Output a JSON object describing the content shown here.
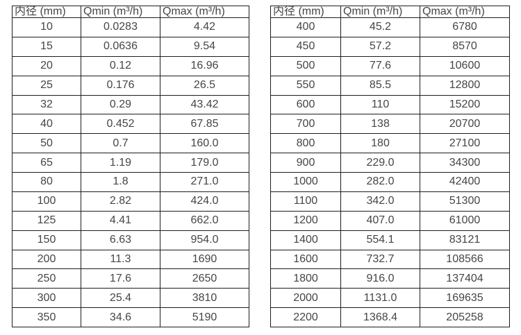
{
  "colors": {
    "border": "#1c1c1c",
    "text": "#454545",
    "background": "#ffffff"
  },
  "tables": {
    "left": {
      "headers": [
        "内径 (mm)",
        "Qmin (m³/h)",
        "Qmax (m³/h)"
      ],
      "rows": [
        [
          "10",
          "0.0283",
          "4.42"
        ],
        [
          "15",
          "0.0636",
          "9.54"
        ],
        [
          "20",
          "0.12",
          "16.96"
        ],
        [
          "25",
          "0.176",
          "26.5"
        ],
        [
          "32",
          "0.29",
          "43.42"
        ],
        [
          "40",
          "0.452",
          "67.85"
        ],
        [
          "50",
          "0.7",
          "160.0"
        ],
        [
          "65",
          "1.19",
          "179.0"
        ],
        [
          "80",
          "1.8",
          "271.0"
        ],
        [
          "100",
          "2.82",
          "424.0"
        ],
        [
          "125",
          "4.41",
          "662.0"
        ],
        [
          "150",
          "6.63",
          "954.0"
        ],
        [
          "200",
          "11.3",
          "1690"
        ],
        [
          "250",
          "17.6",
          "2650"
        ],
        [
          "300",
          "25.4",
          "3810"
        ],
        [
          "350",
          "34.6",
          "5190"
        ]
      ]
    },
    "right": {
      "headers": [
        "内径 (mm)",
        "Qmin (m³/h)",
        "Qmax (m³/h)"
      ],
      "rows": [
        [
          "400",
          "45.2",
          "6780"
        ],
        [
          "450",
          "57.2",
          "8570"
        ],
        [
          "500",
          "77.6",
          "10600"
        ],
        [
          "550",
          "85.5",
          "12800"
        ],
        [
          "600",
          "110",
          "15200"
        ],
        [
          "700",
          "138",
          "20700"
        ],
        [
          "800",
          "180",
          "27100"
        ],
        [
          "900",
          "229.0",
          "34300"
        ],
        [
          "1000",
          "282.0",
          "42400"
        ],
        [
          "1100",
          "342.0",
          "51300"
        ],
        [
          "1200",
          "407.0",
          "61000"
        ],
        [
          "1400",
          "554.1",
          "83121"
        ],
        [
          "1600",
          "732.7",
          "108566"
        ],
        [
          "1800",
          "916.0",
          "137404"
        ],
        [
          "2000",
          "1131.0",
          "169635"
        ],
        [
          "2200",
          "1368.4",
          "205258"
        ]
      ]
    }
  }
}
